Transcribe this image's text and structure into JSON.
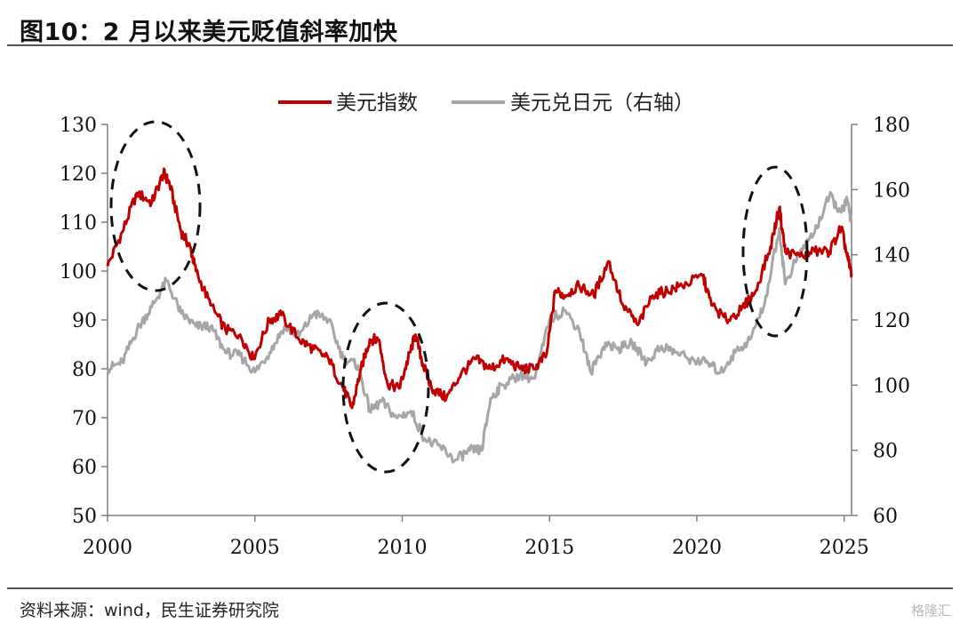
{
  "title": "图10：2 月以来美元贬值斜率加快",
  "source": "资料来源：wind，民生证券研究院",
  "watermark": "格隆汇",
  "colors": {
    "dxy": "#c00000",
    "usdjpy": "#a6a6a6",
    "axis": "#7f7f7f",
    "ellipse": "#111111"
  },
  "chart_data": {
    "type": "line",
    "title": "",
    "xlabel": "",
    "ylabel": "",
    "x_ticks": [
      2000,
      2005,
      2010,
      2015,
      2020,
      2025
    ],
    "x_range": [
      2000,
      2025.25
    ],
    "y_left": {
      "range": [
        50,
        130
      ],
      "ticks": [
        50,
        60,
        70,
        80,
        90,
        100,
        110,
        120,
        130
      ]
    },
    "y_right": {
      "range": [
        60,
        180
      ],
      "ticks": [
        60,
        80,
        100,
        120,
        140,
        160,
        180
      ]
    },
    "legend_position": "top",
    "grid": false,
    "series": [
      {
        "name": "美元指数",
        "axis": "left",
        "color": "#c00000",
        "x": [
          2000.0,
          2000.5,
          2001.0,
          2001.5,
          2001.9,
          2002.1,
          2002.5,
          2002.8,
          2003.0,
          2003.5,
          2004.0,
          2004.5,
          2004.95,
          2005.5,
          2005.9,
          2006.5,
          2007.0,
          2007.5,
          2008.0,
          2008.3,
          2008.6,
          2008.9,
          2009.2,
          2009.5,
          2009.9,
          2010.2,
          2010.45,
          2010.7,
          2011.0,
          2011.5,
          2012.0,
          2012.5,
          2013.0,
          2013.5,
          2014.0,
          2014.5,
          2014.9,
          2015.2,
          2015.5,
          2016.0,
          2016.5,
          2017.0,
          2017.5,
          2018.0,
          2018.5,
          2019.0,
          2019.5,
          2020.2,
          2020.5,
          2021.0,
          2021.5,
          2022.0,
          2022.5,
          2022.8,
          2023.0,
          2023.5,
          2024.0,
          2024.5,
          2024.9,
          2025.1,
          2025.25
        ],
        "y": [
          101,
          108,
          116,
          114,
          120,
          118,
          108,
          105,
          100,
          93,
          88,
          87,
          82,
          90,
          91,
          86,
          84,
          82,
          76,
          72,
          80,
          86,
          86,
          77,
          76,
          82,
          87,
          81,
          76,
          74,
          79,
          82,
          80,
          82,
          80,
          80,
          83,
          96,
          95,
          97,
          95,
          102,
          93,
          89,
          95,
          96,
          97,
          99,
          93,
          90,
          92,
          96,
          105,
          113,
          104,
          103,
          104,
          104,
          109,
          103,
          99.5
        ]
      },
      {
        "name": "美元兑日元（右轴）",
        "axis": "right",
        "color": "#a6a6a6",
        "x": [
          2000.0,
          2000.5,
          2001.0,
          2001.5,
          2002.0,
          2002.5,
          2003.0,
          2003.5,
          2004.0,
          2004.5,
          2005.0,
          2005.5,
          2006.0,
          2006.5,
          2007.0,
          2007.5,
          2008.0,
          2008.5,
          2008.9,
          2009.3,
          2009.8,
          2010.3,
          2010.8,
          2011.3,
          2011.8,
          2012.3,
          2012.7,
          2013.0,
          2013.4,
          2014.0,
          2014.5,
          2015.0,
          2015.5,
          2016.0,
          2016.4,
          2016.9,
          2017.3,
          2017.8,
          2018.3,
          2018.8,
          2019.3,
          2019.8,
          2020.3,
          2020.8,
          2021.3,
          2021.8,
          2022.3,
          2022.8,
          2023.0,
          2023.5,
          2024.0,
          2024.5,
          2024.9,
          2025.1,
          2025.25
        ],
        "y": [
          105,
          107,
          117,
          124,
          132,
          122,
          118,
          118,
          110,
          109,
          104,
          110,
          118,
          115,
          122,
          120,
          108,
          106,
          92,
          95,
          90,
          92,
          83,
          81,
          77,
          80,
          80,
          96,
          100,
          103,
          102,
          120,
          123,
          117,
          104,
          113,
          111,
          113,
          107,
          112,
          110,
          108,
          107,
          104,
          110,
          114,
          125,
          148,
          131,
          141,
          147,
          158,
          153,
          157,
          150
        ]
      }
    ]
  }
}
